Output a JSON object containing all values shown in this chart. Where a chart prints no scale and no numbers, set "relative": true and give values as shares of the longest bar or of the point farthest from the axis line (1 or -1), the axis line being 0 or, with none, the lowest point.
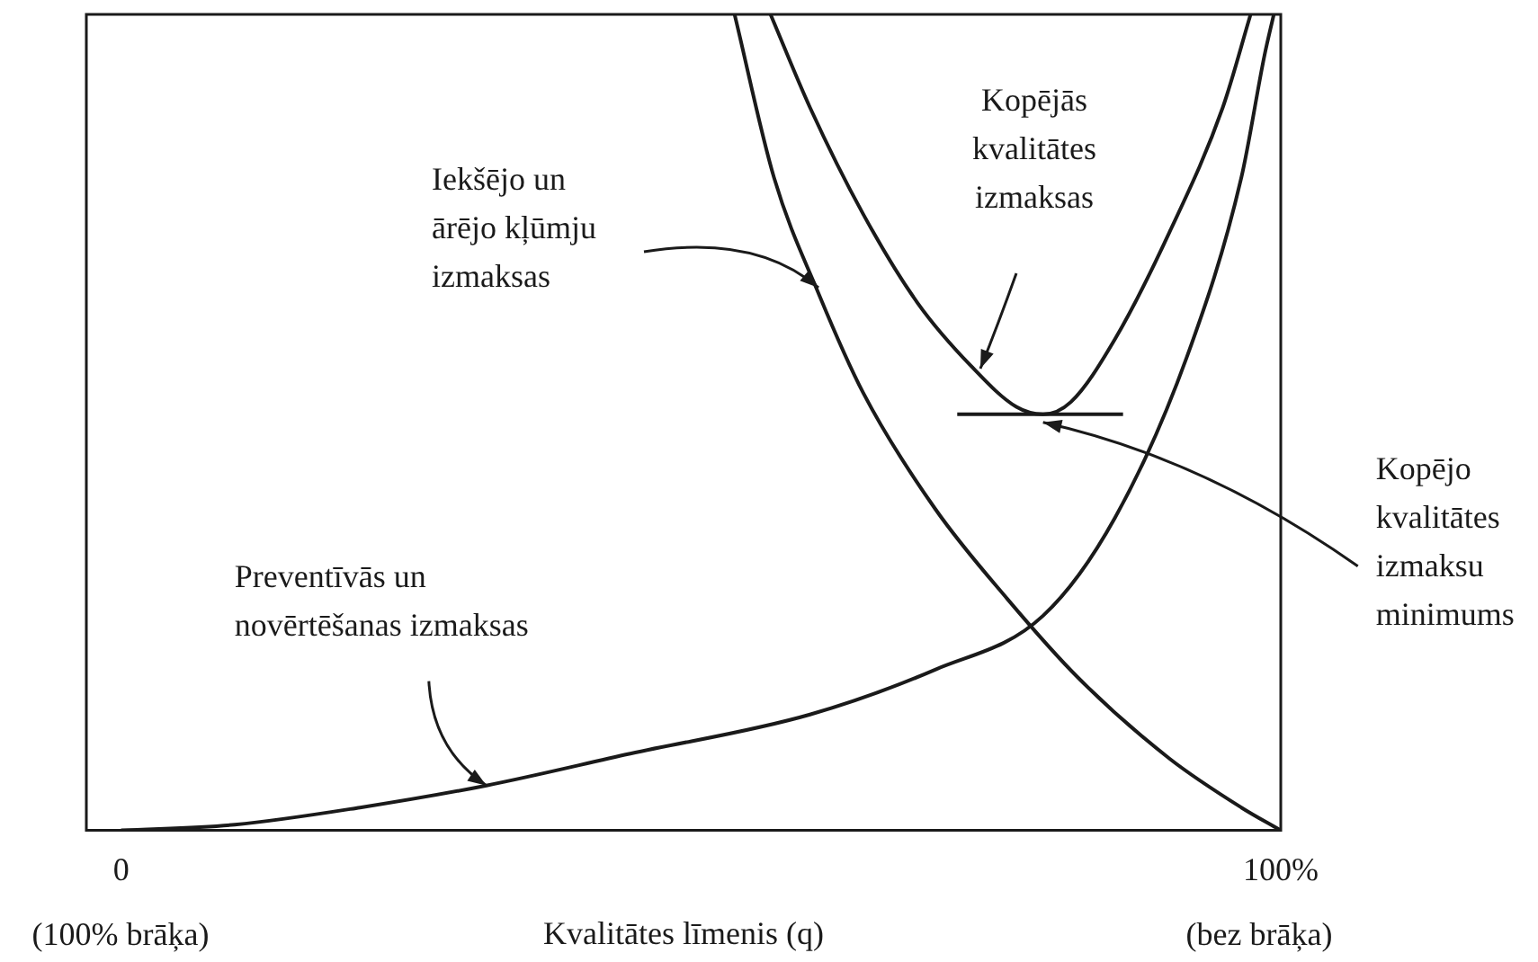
{
  "chart_data": {
    "type": "line",
    "relative": true,
    "xlabel": "Kvalitātes līmenis (q)",
    "xlim": [
      -3,
      100
    ],
    "xticks": [
      0,
      {
        "value": 100,
        "label": "100%"
      }
    ],
    "grid": false,
    "legend": false,
    "marker": "none",
    "line_style": "solid",
    "series": [
      {
        "color": "#1a1a1a",
        "x": [
          0,
          9.8,
          20.6,
          31.5,
          43.9,
          59.4,
          70.2,
          79.5,
          85.7,
          91.9,
          96.6,
          98.6,
          99.4
        ],
        "values": [
          0,
          0.007,
          0.028,
          0.055,
          0.094,
          0.142,
          0.197,
          0.263,
          0.383,
          0.58,
          0.8,
          0.95,
          1
        ]
      },
      {
        "color": "#1a1a1a",
        "x": [
          52.9,
          56.3,
          60.2,
          64,
          70.2,
          76.4,
          82.6,
          90.4,
          96.6,
          100
        ],
        "values": [
          1,
          0.8,
          0.656,
          0.536,
          0.394,
          0.284,
          0.186,
          0.088,
          0.028,
          0
        ]
      },
      {
        "color": "#1a1a1a",
        "x": [
          56,
          59.4,
          64,
          68.7,
          73.3,
          77.2,
          79.5,
          81.9,
          85.7,
          90.4,
          95,
          97.4
        ],
        "values": [
          1,
          0.886,
          0.755,
          0.646,
          0.569,
          0.519,
          0.51,
          0.525,
          0.602,
          0.733,
          0.886,
          1
        ]
      },
      {
        "color": "#1a1a1a",
        "x": [
          72.1,
          86.4
        ],
        "values": [
          0.51,
          0.51
        ]
      }
    ],
    "annotations": [
      "Iekšējo un\nārējo kļūmju\nizmaksas",
      "Kopējās\nkvalitātes\nizmaksas",
      {
        "text": "Kopējo\nkvalitātes\nizmaksu\nminimums",
        "x": 79.5,
        "y": 0.5
      },
      {
        "text": "Preventīvās un\nnovērtēšanas izmaksas",
        "x": 31.5,
        "y": 0.055
      },
      "(100% brāķa)",
      "(bez brāķa)"
    ]
  }
}
